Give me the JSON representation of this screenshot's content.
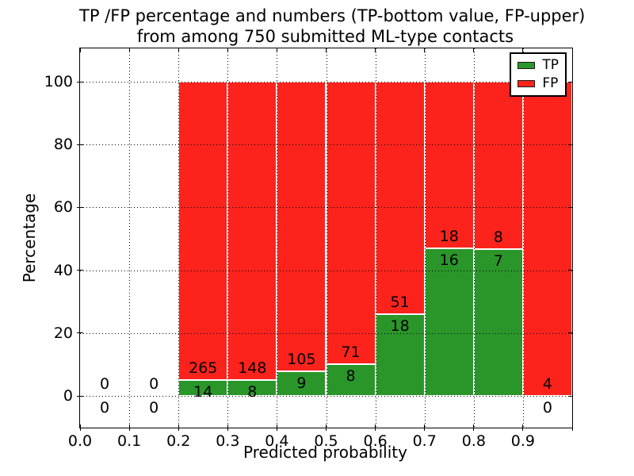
{
  "chart_data": {
    "type": "bar",
    "stacked": true,
    "title": [
      "TP /FP percentage and numbers (TP-bottom value, FP-upper)",
      "from among 750 submitted ML-type contacts"
    ],
    "xlabel": "Predicted probability",
    "ylabel": "Percentage",
    "x_tick_labels": [
      "0.0",
      "0.1",
      "0.2",
      "0.3",
      "0.4",
      "0.5",
      "0.6",
      "0.7",
      "0.8",
      "0.9"
    ],
    "y_tick_values": [
      0,
      20,
      40,
      60,
      80,
      100
    ],
    "xlim": [
      0.0,
      1.0
    ],
    "ylim": [
      -10.1,
      110.7
    ],
    "grid": true,
    "legend": {
      "position": "upper-right",
      "entries": [
        {
          "label": "TP",
          "color": "#2a962a"
        },
        {
          "label": "FP",
          "color": "#fb231c"
        }
      ]
    },
    "bins": [
      {
        "range": [
          0.0,
          0.1
        ],
        "tp": 0,
        "fp": 0
      },
      {
        "range": [
          0.1,
          0.2
        ],
        "tp": 0,
        "fp": 0
      },
      {
        "range": [
          0.2,
          0.3
        ],
        "tp": 14,
        "fp": 265
      },
      {
        "range": [
          0.3,
          0.4
        ],
        "tp": 8,
        "fp": 148
      },
      {
        "range": [
          0.4,
          0.5
        ],
        "tp": 9,
        "fp": 105
      },
      {
        "range": [
          0.5,
          0.6
        ],
        "tp": 8,
        "fp": 71
      },
      {
        "range": [
          0.6,
          0.7
        ],
        "tp": 18,
        "fp": 51
      },
      {
        "range": [
          0.7,
          0.8
        ],
        "tp": 16,
        "fp": 18
      },
      {
        "range": [
          0.8,
          0.9
        ],
        "tp": 7,
        "fp": 8
      },
      {
        "range": [
          0.9,
          1.0
        ],
        "tp": 0,
        "fp": 4
      }
    ]
  }
}
